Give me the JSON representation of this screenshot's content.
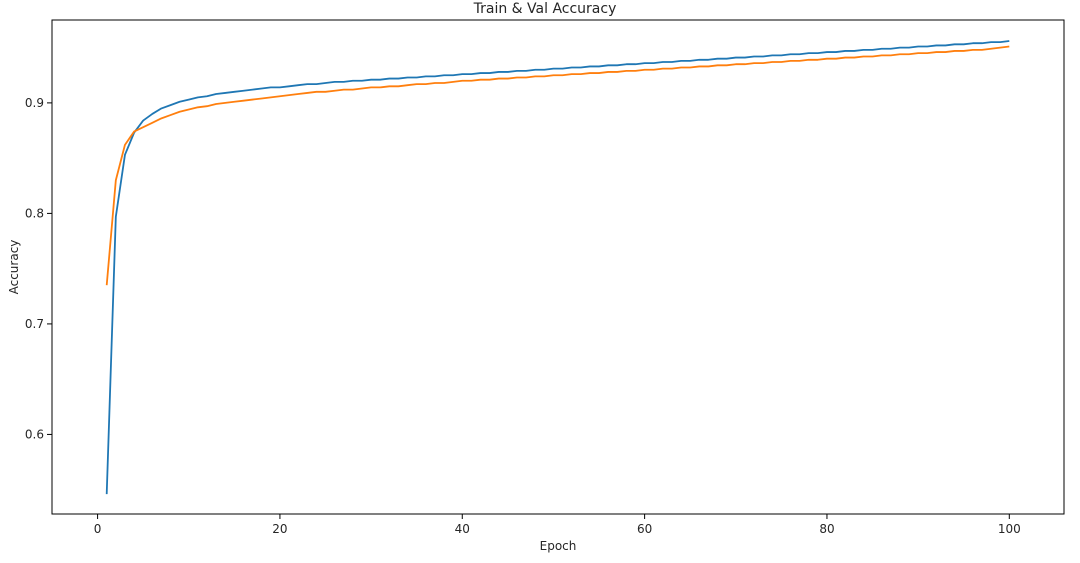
{
  "chart_data": {
    "type": "line",
    "title": "Train & Val Accuracy",
    "xlabel": "Epoch",
    "ylabel": "Accuracy",
    "xlim": [
      -5,
      106
    ],
    "ylim": [
      0.528,
      0.975
    ],
    "xticks": [
      0,
      20,
      40,
      60,
      80,
      100
    ],
    "yticks": [
      0.6,
      0.7,
      0.8,
      0.9
    ],
    "ytick_labels": [
      "0.6",
      "0.7",
      "0.8",
      "0.9"
    ],
    "grid": false,
    "x": [
      1,
      2,
      3,
      4,
      5,
      6,
      7,
      8,
      9,
      10,
      11,
      12,
      13,
      14,
      15,
      16,
      17,
      18,
      19,
      20,
      21,
      22,
      23,
      24,
      25,
      26,
      27,
      28,
      29,
      30,
      31,
      32,
      33,
      34,
      35,
      36,
      37,
      38,
      39,
      40,
      41,
      42,
      43,
      44,
      45,
      46,
      47,
      48,
      49,
      50,
      51,
      52,
      53,
      54,
      55,
      56,
      57,
      58,
      59,
      60,
      61,
      62,
      63,
      64,
      65,
      66,
      67,
      68,
      69,
      70,
      71,
      72,
      73,
      74,
      75,
      76,
      77,
      78,
      79,
      80,
      81,
      82,
      83,
      84,
      85,
      86,
      87,
      88,
      89,
      90,
      91,
      92,
      93,
      94,
      95,
      96,
      97,
      98,
      99,
      100
    ],
    "series": [
      {
        "color": "#1f77b4",
        "values": [
          0.546,
          0.797,
          0.853,
          0.873,
          0.884,
          0.89,
          0.895,
          0.898,
          0.901,
          0.903,
          0.905,
          0.906,
          0.908,
          0.909,
          0.91,
          0.911,
          0.912,
          0.913,
          0.914,
          0.914,
          0.915,
          0.916,
          0.917,
          0.917,
          0.918,
          0.919,
          0.919,
          0.92,
          0.92,
          0.921,
          0.921,
          0.922,
          0.922,
          0.923,
          0.923,
          0.924,
          0.924,
          0.925,
          0.925,
          0.926,
          0.926,
          0.927,
          0.927,
          0.928,
          0.928,
          0.929,
          0.929,
          0.93,
          0.93,
          0.931,
          0.931,
          0.932,
          0.932,
          0.933,
          0.933,
          0.934,
          0.934,
          0.935,
          0.935,
          0.936,
          0.936,
          0.937,
          0.937,
          0.938,
          0.938,
          0.939,
          0.939,
          0.94,
          0.94,
          0.941,
          0.941,
          0.942,
          0.942,
          0.943,
          0.943,
          0.944,
          0.944,
          0.945,
          0.945,
          0.946,
          0.946,
          0.947,
          0.947,
          0.948,
          0.948,
          0.949,
          0.949,
          0.95,
          0.95,
          0.951,
          0.951,
          0.952,
          0.952,
          0.953,
          0.953,
          0.954,
          0.954,
          0.955,
          0.955,
          0.956
        ]
      },
      {
        "color": "#ff7f0e",
        "values": [
          0.735,
          0.83,
          0.862,
          0.874,
          0.878,
          0.882,
          0.886,
          0.889,
          0.892,
          0.894,
          0.896,
          0.897,
          0.899,
          0.9,
          0.901,
          0.902,
          0.903,
          0.904,
          0.905,
          0.906,
          0.907,
          0.908,
          0.909,
          0.91,
          0.91,
          0.911,
          0.912,
          0.912,
          0.913,
          0.914,
          0.914,
          0.915,
          0.915,
          0.916,
          0.917,
          0.917,
          0.918,
          0.918,
          0.919,
          0.92,
          0.92,
          0.921,
          0.921,
          0.922,
          0.922,
          0.923,
          0.923,
          0.924,
          0.924,
          0.925,
          0.925,
          0.926,
          0.926,
          0.927,
          0.927,
          0.928,
          0.928,
          0.929,
          0.929,
          0.93,
          0.93,
          0.931,
          0.931,
          0.932,
          0.932,
          0.933,
          0.933,
          0.934,
          0.934,
          0.935,
          0.935,
          0.936,
          0.936,
          0.937,
          0.937,
          0.938,
          0.938,
          0.939,
          0.939,
          0.94,
          0.94,
          0.941,
          0.941,
          0.942,
          0.942,
          0.943,
          0.943,
          0.944,
          0.944,
          0.945,
          0.945,
          0.946,
          0.946,
          0.947,
          0.947,
          0.948,
          0.948,
          0.949,
          0.95,
          0.951
        ]
      }
    ]
  }
}
